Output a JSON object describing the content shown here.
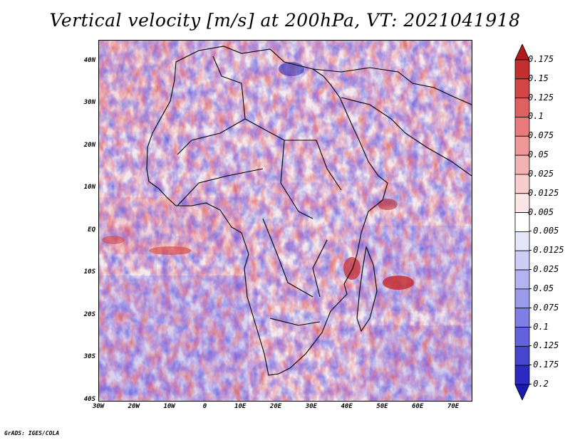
{
  "title": "Vertical velocity [m/s] at 200hPa, VT: 2021041918",
  "footer": "GrADS: IGES/COLA",
  "map": {
    "lon_range": [
      -30,
      75
    ],
    "lat_range": [
      -40,
      45
    ],
    "lat_labels": [
      "40N",
      "30N",
      "20N",
      "10N",
      "EQ",
      "10S",
      "20S",
      "30S",
      "40S"
    ],
    "lat_values": [
      40,
      30,
      20,
      10,
      0,
      -10,
      -20,
      -30,
      -40
    ],
    "lon_labels": [
      "30W",
      "20W",
      "10W",
      "0",
      "10E",
      "20E",
      "30E",
      "40E",
      "50E",
      "60E",
      "70E"
    ],
    "lon_values": [
      -30,
      -20,
      -10,
      0,
      10,
      20,
      30,
      40,
      50,
      60,
      70
    ],
    "zero_color": "#ffffff"
  },
  "colorbar": {
    "labels": [
      "0.175",
      "0.15",
      "0.125",
      "0.1",
      "0.075",
      "0.05",
      "0.025",
      "0.0125",
      "0.005",
      "-0.005",
      "-0.0125",
      "-0.025",
      "-0.05",
      "-0.075",
      "-0.1",
      "-0.125",
      "-0.175",
      "-0.2"
    ],
    "colors": [
      "#b11a1a",
      "#c32f2f",
      "#d34646",
      "#df6060",
      "#e77b7b",
      "#ee9898",
      "#f3b3b3",
      "#f7cdcd",
      "#fbe6e6",
      "#ffffff",
      "#e6e6fb",
      "#cdcdf6",
      "#b3b3f0",
      "#9a9aea",
      "#7e7ee3",
      "#6262dc",
      "#4545d0",
      "#2b2bc2",
      "#1a1ab0"
    ]
  }
}
